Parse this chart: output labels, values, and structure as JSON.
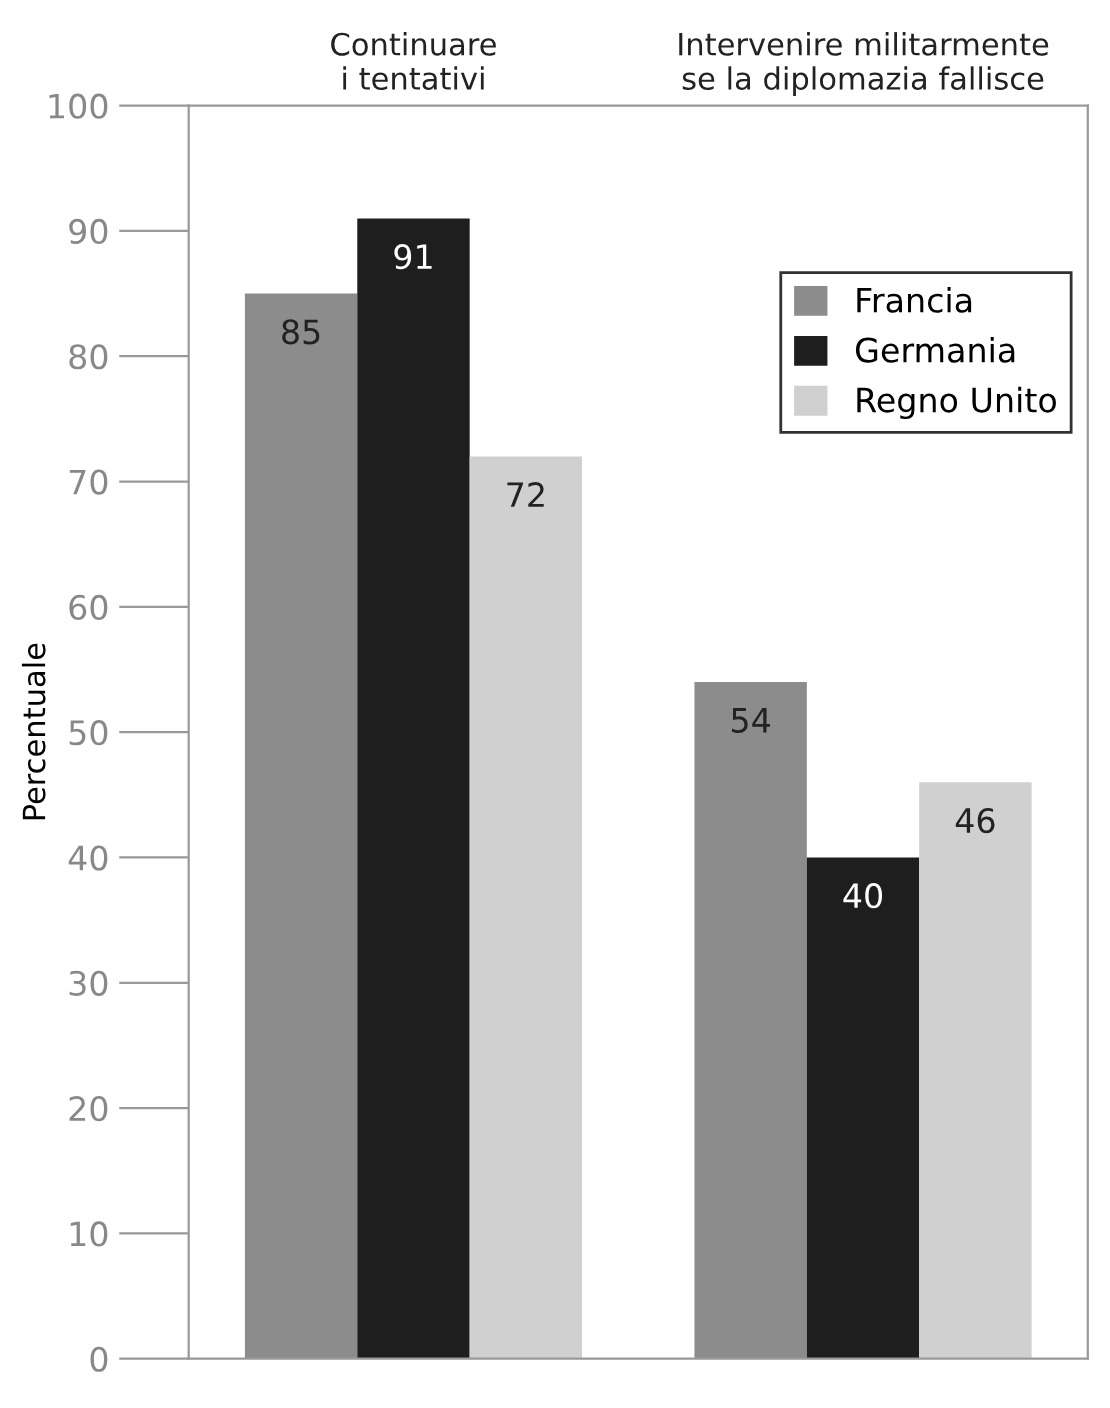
{
  "chart_data": {
    "type": "bar",
    "ylabel": "Percentuale",
    "categories": [
      "Continuare\ni tentativi",
      "Intervenire militarmente\nse la diplomazia fallisce"
    ],
    "series": [
      {
        "name": "Francia",
        "color": "#8c8c8c",
        "values": [
          85,
          54
        ]
      },
      {
        "name": "Germania",
        "color": "#1e1e1e",
        "values": [
          91,
          40
        ]
      },
      {
        "name": "Regno Unito",
        "color": "#d0d0d0",
        "values": [
          72,
          46
        ]
      }
    ],
    "ylim": [
      0,
      100
    ],
    "yticks": [
      0,
      10,
      20,
      30,
      40,
      50,
      60,
      70,
      80,
      90,
      100
    ],
    "data_labels": true,
    "legend": "top right",
    "grid": false
  }
}
